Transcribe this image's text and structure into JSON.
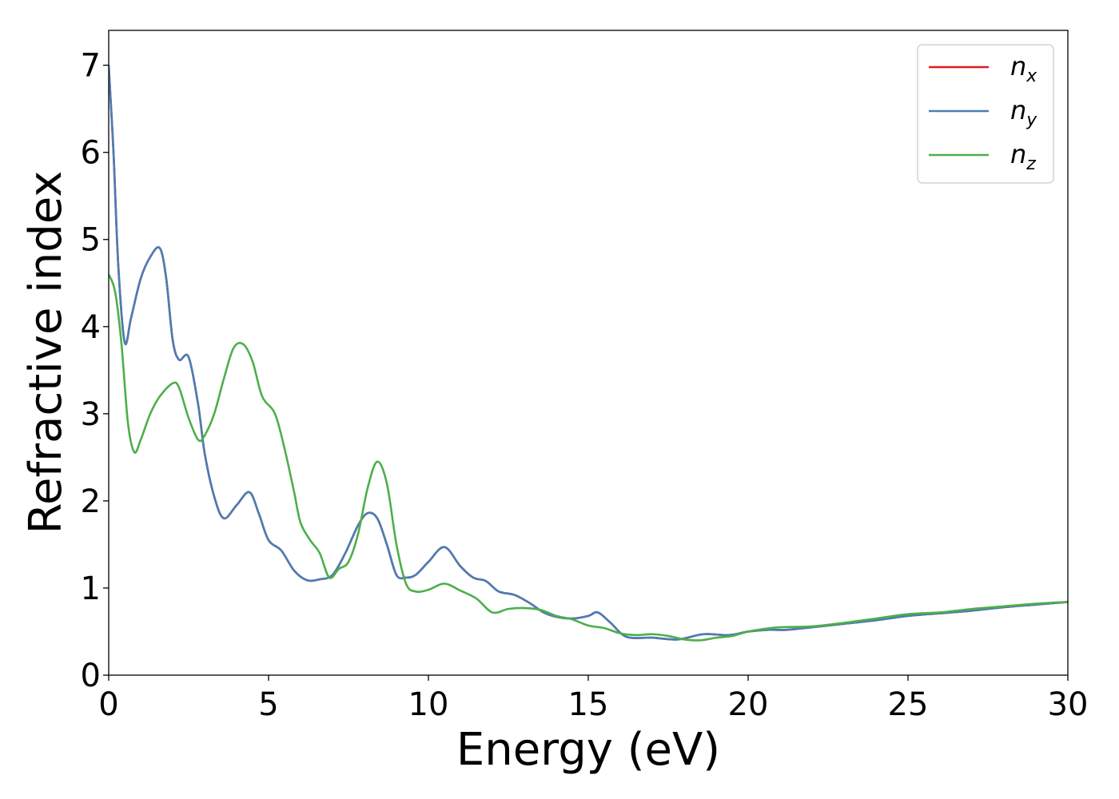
{
  "chart_data": {
    "type": "line",
    "title": "",
    "xlabel": "Energy (eV)",
    "ylabel": "Refractive index",
    "xlim": [
      0,
      30
    ],
    "ylim": [
      0,
      7.4
    ],
    "xticks": [
      0,
      5,
      10,
      15,
      20,
      25,
      30
    ],
    "yticks": [
      0,
      1,
      2,
      3,
      4,
      5,
      6,
      7
    ],
    "grid": false,
    "legend_position": "top-right",
    "series": [
      {
        "name": "n",
        "sub": "x",
        "color": "#e41a1c",
        "x": [
          0.0,
          0.15,
          0.3,
          0.5,
          0.7,
          1.0,
          1.3,
          1.6,
          1.8,
          2.0,
          2.2,
          2.5,
          2.8,
          3.0,
          3.3,
          3.6,
          4.0,
          4.4,
          4.7,
          5.0,
          5.4,
          5.8,
          6.2,
          6.6,
          7.0,
          7.4,
          7.8,
          8.1,
          8.4,
          8.7,
          9.0,
          9.3,
          9.6,
          10.0,
          10.5,
          11.0,
          11.4,
          11.8,
          12.2,
          12.7,
          13.2,
          13.6,
          14.0,
          14.5,
          15.0,
          15.3,
          15.7,
          16.2,
          17.0,
          17.8,
          18.6,
          19.4,
          20.0,
          20.6,
          21.2,
          22.0,
          23.0,
          24.0,
          25.0,
          26.0,
          27.0,
          28.0,
          29.0,
          30.0
        ],
        "values": [
          7.0,
          6.0,
          4.7,
          3.82,
          4.1,
          4.55,
          4.8,
          4.9,
          4.55,
          3.85,
          3.62,
          3.65,
          3.1,
          2.55,
          2.05,
          1.8,
          1.95,
          2.1,
          1.85,
          1.55,
          1.43,
          1.2,
          1.09,
          1.1,
          1.15,
          1.4,
          1.72,
          1.86,
          1.8,
          1.5,
          1.15,
          1.12,
          1.15,
          1.3,
          1.47,
          1.25,
          1.12,
          1.08,
          0.96,
          0.92,
          0.82,
          0.72,
          0.67,
          0.65,
          0.68,
          0.72,
          0.6,
          0.44,
          0.43,
          0.41,
          0.47,
          0.46,
          0.5,
          0.52,
          0.52,
          0.55,
          0.59,
          0.63,
          0.68,
          0.71,
          0.74,
          0.78,
          0.81,
          0.84
        ]
      },
      {
        "name": "n",
        "sub": "y",
        "color": "#4a7db5",
        "x": [
          0.0,
          0.15,
          0.3,
          0.5,
          0.7,
          1.0,
          1.3,
          1.6,
          1.8,
          2.0,
          2.2,
          2.5,
          2.8,
          3.0,
          3.3,
          3.6,
          4.0,
          4.4,
          4.7,
          5.0,
          5.4,
          5.8,
          6.2,
          6.6,
          7.0,
          7.4,
          7.8,
          8.1,
          8.4,
          8.7,
          9.0,
          9.3,
          9.6,
          10.0,
          10.5,
          11.0,
          11.4,
          11.8,
          12.2,
          12.7,
          13.2,
          13.6,
          14.0,
          14.5,
          15.0,
          15.3,
          15.7,
          16.2,
          17.0,
          17.8,
          18.6,
          19.4,
          20.0,
          20.6,
          21.2,
          22.0,
          23.0,
          24.0,
          25.0,
          26.0,
          27.0,
          28.0,
          29.0,
          30.0
        ],
        "values": [
          7.0,
          6.0,
          4.7,
          3.82,
          4.1,
          4.55,
          4.8,
          4.9,
          4.55,
          3.85,
          3.62,
          3.65,
          3.1,
          2.55,
          2.05,
          1.8,
          1.95,
          2.1,
          1.85,
          1.55,
          1.43,
          1.2,
          1.09,
          1.1,
          1.15,
          1.4,
          1.72,
          1.86,
          1.8,
          1.5,
          1.15,
          1.12,
          1.15,
          1.3,
          1.47,
          1.25,
          1.12,
          1.08,
          0.96,
          0.92,
          0.82,
          0.72,
          0.67,
          0.65,
          0.68,
          0.72,
          0.6,
          0.44,
          0.43,
          0.41,
          0.47,
          0.46,
          0.5,
          0.52,
          0.52,
          0.55,
          0.59,
          0.63,
          0.68,
          0.71,
          0.74,
          0.78,
          0.81,
          0.84
        ]
      },
      {
        "name": "n",
        "sub": "z",
        "color": "#4daf4a",
        "x": [
          0.0,
          0.2,
          0.4,
          0.6,
          0.8,
          1.0,
          1.3,
          1.6,
          2.0,
          2.2,
          2.5,
          2.8,
          3.0,
          3.3,
          3.6,
          3.9,
          4.2,
          4.5,
          4.8,
          5.2,
          5.5,
          5.8,
          6.0,
          6.3,
          6.6,
          6.9,
          7.2,
          7.5,
          7.8,
          8.1,
          8.4,
          8.7,
          9.0,
          9.3,
          9.6,
          10.0,
          10.5,
          11.0,
          11.5,
          12.0,
          12.5,
          13.0,
          13.5,
          14.0,
          14.5,
          15.0,
          15.5,
          16.0,
          16.5,
          17.0,
          17.5,
          18.0,
          18.5,
          19.0,
          19.5,
          20.0,
          20.5,
          21.0,
          22.0,
          23.0,
          24.0,
          25.0,
          26.0,
          27.0,
          28.0,
          29.0,
          30.0
        ],
        "values": [
          4.6,
          4.4,
          3.8,
          2.9,
          2.56,
          2.7,
          3.0,
          3.2,
          3.35,
          3.3,
          2.95,
          2.7,
          2.75,
          3.0,
          3.4,
          3.75,
          3.8,
          3.6,
          3.2,
          3.0,
          2.6,
          2.1,
          1.75,
          1.55,
          1.4,
          1.12,
          1.22,
          1.3,
          1.62,
          2.15,
          2.45,
          2.2,
          1.5,
          1.05,
          0.96,
          0.98,
          1.05,
          0.97,
          0.88,
          0.72,
          0.76,
          0.77,
          0.75,
          0.68,
          0.64,
          0.57,
          0.54,
          0.48,
          0.46,
          0.47,
          0.45,
          0.41,
          0.4,
          0.43,
          0.45,
          0.5,
          0.53,
          0.55,
          0.56,
          0.6,
          0.65,
          0.7,
          0.72,
          0.76,
          0.79,
          0.82,
          0.84
        ]
      }
    ]
  }
}
